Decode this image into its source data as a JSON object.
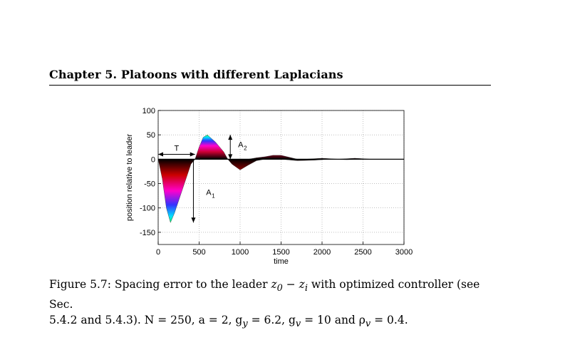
{
  "header": {
    "chapter_title": "Chapter 5.   Platoons with different Laplacians"
  },
  "figure": {
    "annotations": {
      "T": "T",
      "A1": "A",
      "A1_sub": "1",
      "A2": "A",
      "A2_sub": "2"
    }
  },
  "caption": {
    "line1_text": "Figure 5.7: Spacing error to the leader ",
    "line1_math": "z",
    "line1_after": " with optimized controller (see Sec.",
    "line2": "5.4.2 and 5.4.3).  N = 250, a = 2, g",
    "line2_rest": " = 6.2, g",
    "line2_rest2": " = 10 and ρ",
    "line2_end": " = 0.4."
  },
  "chart_data": {
    "type": "line",
    "title": "",
    "xlabel": "time",
    "ylabel": "position relative to leader",
    "xlim": [
      0,
      3000
    ],
    "ylim": [
      -175,
      100
    ],
    "xticks": [
      0,
      500,
      1000,
      1500,
      2000,
      2500,
      3000
    ],
    "yticks": [
      100,
      50,
      0,
      -50,
      -100,
      -150
    ],
    "grid": true,
    "envelope_min": {
      "x": [
        0,
        50,
        100,
        150,
        200,
        300,
        400,
        450,
        500,
        600,
        700,
        800,
        850,
        900,
        1000,
        1100,
        1200,
        1300,
        1500,
        1700,
        1900,
        2100,
        2300,
        2500,
        3000
      ],
      "y": [
        0,
        -40,
        -100,
        -130,
        -110,
        -60,
        -10,
        0,
        0,
        0,
        0,
        0,
        0,
        -10,
        -22,
        -12,
        -3,
        0,
        0,
        -3,
        -2,
        0,
        -1,
        0,
        0
      ]
    },
    "envelope_max": {
      "x": [
        0,
        450,
        500,
        550,
        600,
        700,
        800,
        850,
        900,
        1000,
        1100,
        1200,
        1300,
        1400,
        1500,
        1600,
        1700,
        1800,
        2000,
        2200,
        2400,
        2600,
        3000
      ],
      "y": [
        0,
        0,
        25,
        45,
        50,
        35,
        15,
        0,
        0,
        0,
        0,
        3,
        5,
        8,
        8,
        4,
        0,
        0,
        2,
        0,
        2,
        0,
        0
      ]
    }
  }
}
